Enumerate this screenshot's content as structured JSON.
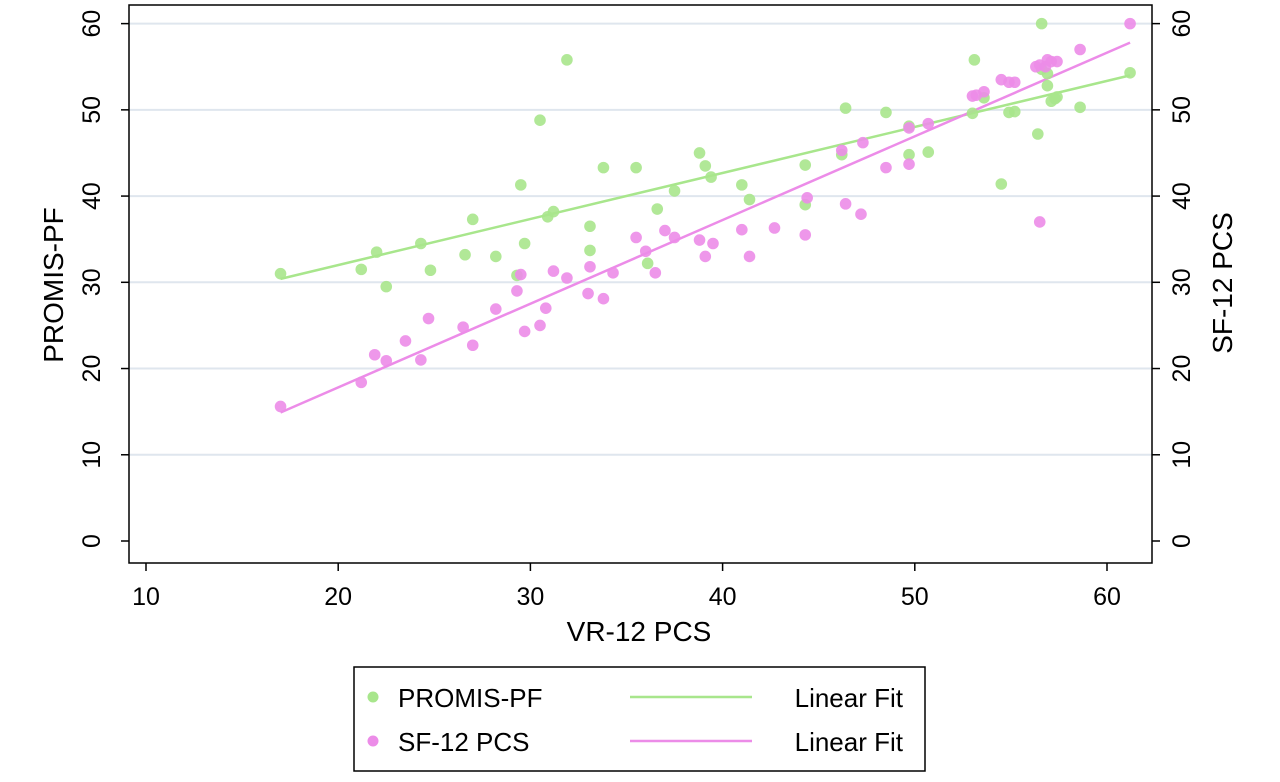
{
  "chart_data": {
    "type": "scatter",
    "title": "",
    "xlabel": "VR-12 PCS",
    "ylabel": "PROMIS-PF",
    "y2label": "SF-12 PCS",
    "xlim": [
      10,
      61
    ],
    "ylim": [
      0,
      62
    ],
    "x_ticks": [
      10,
      20,
      30,
      40,
      50,
      60
    ],
    "y_ticks": [
      0,
      10,
      20,
      30,
      40,
      50,
      60
    ],
    "y2_ticks": [
      0,
      10,
      20,
      30,
      40,
      50,
      60
    ],
    "grid": "horizontal",
    "legend_position": "bottom",
    "legend": {
      "series1_label": "PROMIS-PF",
      "series2_label": "SF-12 PCS",
      "fit1_label": "Linear Fit",
      "fit2_label": "Linear Fit"
    },
    "series": [
      {
        "name": "PROMIS-PF",
        "color": "#a8e68c",
        "points": [
          [
            17,
            31
          ],
          [
            21.2,
            31.5
          ],
          [
            22,
            33.5
          ],
          [
            22.5,
            29.5
          ],
          [
            24.3,
            34.5
          ],
          [
            24.8,
            31.4
          ],
          [
            26.6,
            33.2
          ],
          [
            27,
            37.3
          ],
          [
            28.2,
            33
          ],
          [
            29.3,
            30.8
          ],
          [
            29.5,
            41.3
          ],
          [
            29.7,
            34.5
          ],
          [
            30.5,
            48.8
          ],
          [
            30.9,
            37.6
          ],
          [
            31.2,
            38.2
          ],
          [
            31.9,
            55.8
          ],
          [
            33.1,
            36.5
          ],
          [
            33.1,
            33.7
          ],
          [
            33.8,
            43.3
          ],
          [
            35.5,
            43.3
          ],
          [
            36.1,
            32.2
          ],
          [
            36.6,
            38.5
          ],
          [
            37.5,
            40.6
          ],
          [
            38.8,
            45
          ],
          [
            39.1,
            43.5
          ],
          [
            39.4,
            42.2
          ],
          [
            41,
            41.3
          ],
          [
            41.4,
            39.6
          ],
          [
            44.3,
            43.6
          ],
          [
            44.3,
            39
          ],
          [
            46.2,
            44.8
          ],
          [
            46.4,
            50.2
          ],
          [
            48.5,
            49.7
          ],
          [
            49.7,
            44.8
          ],
          [
            49.7,
            48.1
          ],
          [
            50.7,
            45.1
          ],
          [
            53,
            49.6
          ],
          [
            53.1,
            55.8
          ],
          [
            53.6,
            51.4
          ],
          [
            54.5,
            41.4
          ],
          [
            54.9,
            49.7
          ],
          [
            55.2,
            49.8
          ],
          [
            56.4,
            47.2
          ],
          [
            56.6,
            60
          ],
          [
            56.6,
            54.7
          ],
          [
            56.9,
            54.2
          ],
          [
            56.9,
            52.8
          ],
          [
            57.1,
            51
          ],
          [
            57.3,
            51.3
          ],
          [
            57.4,
            51.5
          ],
          [
            58.6,
            50.3
          ],
          [
            61.2,
            54.3
          ]
        ],
        "fit": [
          [
            17,
            30.4
          ],
          [
            61.2,
            54
          ]
        ]
      },
      {
        "name": "SF-12 PCS",
        "color": "#ec8ce8",
        "points": [
          [
            17,
            15.6
          ],
          [
            21.2,
            18.4
          ],
          [
            21.9,
            21.6
          ],
          [
            22.5,
            20.9
          ],
          [
            23.5,
            23.2
          ],
          [
            24.3,
            21
          ],
          [
            24.7,
            25.8
          ],
          [
            26.5,
            24.8
          ],
          [
            27,
            22.7
          ],
          [
            28.2,
            26.9
          ],
          [
            29.3,
            29
          ],
          [
            29.5,
            30.9
          ],
          [
            29.7,
            24.3
          ],
          [
            30.5,
            25
          ],
          [
            30.8,
            27
          ],
          [
            31.2,
            31.3
          ],
          [
            31.9,
            30.5
          ],
          [
            33,
            28.7
          ],
          [
            33.1,
            31.8
          ],
          [
            33.8,
            28.1
          ],
          [
            34.3,
            31.1
          ],
          [
            35.5,
            35.2
          ],
          [
            36,
            33.6
          ],
          [
            36.5,
            31.1
          ],
          [
            37,
            36
          ],
          [
            37.5,
            35.2
          ],
          [
            38.8,
            34.9
          ],
          [
            39.1,
            33
          ],
          [
            39.5,
            34.5
          ],
          [
            41,
            36.1
          ],
          [
            41.4,
            33
          ],
          [
            42.7,
            36.3
          ],
          [
            44.3,
            35.5
          ],
          [
            44.4,
            39.8
          ],
          [
            46.2,
            45.3
          ],
          [
            46.4,
            39.1
          ],
          [
            47.2,
            37.9
          ],
          [
            47.3,
            46.2
          ],
          [
            48.5,
            43.3
          ],
          [
            49.7,
            47.9
          ],
          [
            49.7,
            43.7
          ],
          [
            50.7,
            48.4
          ],
          [
            53,
            51.6
          ],
          [
            53.2,
            51.7
          ],
          [
            53.6,
            52.1
          ],
          [
            54.5,
            53.5
          ],
          [
            54.9,
            53.2
          ],
          [
            55.2,
            53.2
          ],
          [
            56.3,
            55
          ],
          [
            56.5,
            37
          ],
          [
            56.5,
            55.2
          ],
          [
            56.8,
            55
          ],
          [
            56.9,
            55.8
          ],
          [
            57.1,
            55.6
          ],
          [
            57.4,
            55.6
          ],
          [
            58.6,
            57
          ],
          [
            61.2,
            60
          ]
        ],
        "fit": [
          [
            17,
            14.9
          ],
          [
            61.2,
            57.8
          ]
        ]
      }
    ]
  }
}
